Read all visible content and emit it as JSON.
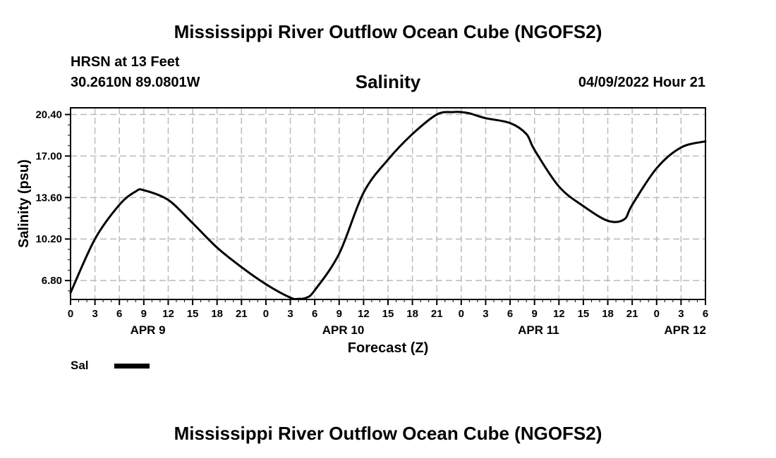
{
  "header": {
    "title": "Mississippi River Outflow Ocean Cube (NGOFS2)",
    "station": "HRSN at 13 Feet",
    "coords": "30.2610N  89.0801W",
    "variable": "Salinity",
    "datetime": "04/09/2022 Hour 21"
  },
  "footer": {
    "title": "Mississippi River Outflow Ocean Cube (NGOFS2)"
  },
  "legend": {
    "label": "Sal",
    "color": "#000000"
  },
  "chart_data": {
    "type": "line",
    "xlabel": "Forecast (Z)",
    "ylabel": "Salinity (psu)",
    "ylim": [
      5.25,
      20.95
    ],
    "yticks": [
      "20.40",
      "17.00",
      "13.60",
      "10.20",
      "6.80"
    ],
    "xlim": [
      0,
      78
    ],
    "xticks": [
      "0",
      "3",
      "6",
      "9",
      "12",
      "15",
      "18",
      "21",
      "0",
      "3",
      "6",
      "9",
      "12",
      "15",
      "18",
      "21",
      "0",
      "3",
      "6",
      "9",
      "12",
      "15",
      "18",
      "21",
      "0",
      "3",
      "6"
    ],
    "date_labels": [
      {
        "label": "APR 9",
        "hour": 9.5
      },
      {
        "label": "APR 10",
        "hour": 33.5
      },
      {
        "label": "APR 11",
        "hour": 57.5
      },
      {
        "label": "APR 12",
        "hour": 75.5
      }
    ],
    "grid": true,
    "legend_position": "bottom-left",
    "series": [
      {
        "name": "Sal",
        "x": [
          0,
          3,
          6,
          8,
          9,
          12,
          15,
          18,
          21,
          24,
          27,
          28,
          29,
          30,
          33,
          36,
          39,
          42,
          45,
          47,
          48,
          49,
          51,
          54,
          56,
          57,
          60,
          63,
          66,
          68,
          69,
          72,
          75,
          78
        ],
        "y": [
          5.8,
          10.2,
          13.0,
          14.1,
          14.2,
          13.4,
          11.5,
          9.5,
          7.9,
          6.5,
          5.4,
          5.3,
          5.4,
          6.0,
          9.0,
          14.0,
          16.7,
          18.8,
          20.4,
          20.6,
          20.6,
          20.5,
          20.1,
          19.7,
          18.8,
          17.5,
          14.5,
          12.9,
          11.7,
          11.8,
          13.0,
          16.0,
          17.7,
          18.2
        ]
      }
    ]
  }
}
